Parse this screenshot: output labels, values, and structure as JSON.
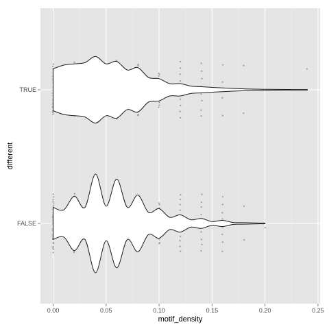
{
  "chart_data": {
    "type": "violin",
    "xlabel": "motif_density",
    "ylabel": "different",
    "xlim": [
      -0.012,
      0.252
    ],
    "x_ticks": [
      0.0,
      0.05,
      0.1,
      0.15,
      0.2,
      0.25
    ],
    "x_tick_labels": [
      "0.00",
      "0.05",
      "0.10",
      "0.15",
      "0.20",
      "0.25"
    ],
    "categories": [
      "FALSE",
      "TRUE"
    ],
    "grid": true,
    "background_color": "#e5e5e5",
    "grid_color": "#ffffff",
    "violins": [
      {
        "category": "TRUE",
        "min": 0.0,
        "max": 0.24,
        "half_width_profile": [
          [
            0.0,
            0.34
          ],
          [
            0.01,
            0.4
          ],
          [
            0.02,
            0.42
          ],
          [
            0.03,
            0.44
          ],
          [
            0.04,
            0.54
          ],
          [
            0.05,
            0.42
          ],
          [
            0.06,
            0.46
          ],
          [
            0.07,
            0.32
          ],
          [
            0.08,
            0.36
          ],
          [
            0.09,
            0.2
          ],
          [
            0.1,
            0.18
          ],
          [
            0.11,
            0.1
          ],
          [
            0.12,
            0.1
          ],
          [
            0.13,
            0.06
          ],
          [
            0.14,
            0.05
          ],
          [
            0.16,
            0.03
          ],
          [
            0.18,
            0.015
          ],
          [
            0.2,
            0.008
          ],
          [
            0.22,
            0.005
          ],
          [
            0.24,
            0.004
          ]
        ],
        "points": [
          {
            "x": 0.0,
            "spread": 0.4,
            "n": 30
          },
          {
            "x": 0.02,
            "spread": 0.44,
            "n": 30
          },
          {
            "x": 0.04,
            "spread": 0.48,
            "n": 34
          },
          {
            "x": 0.06,
            "spread": 0.48,
            "n": 34
          },
          {
            "x": 0.08,
            "spread": 0.42,
            "n": 28
          },
          {
            "x": 0.1,
            "spread": 0.28,
            "n": 16
          },
          {
            "x": 0.12,
            "spread": 0.44,
            "n": 10
          },
          {
            "x": 0.14,
            "spread": 0.44,
            "n": 8
          },
          {
            "x": 0.16,
            "spread": 0.42,
            "n": 4
          },
          {
            "x": 0.18,
            "spread": 0.38,
            "n": 2
          },
          {
            "x": 0.24,
            "spread": 0.38,
            "n": 1
          }
        ]
      },
      {
        "category": "FALSE",
        "min": 0.0,
        "max": 0.2,
        "half_width_profile": [
          [
            0.0,
            0.26
          ],
          [
            0.01,
            0.22
          ],
          [
            0.02,
            0.44
          ],
          [
            0.03,
            0.26
          ],
          [
            0.04,
            0.8
          ],
          [
            0.05,
            0.28
          ],
          [
            0.06,
            0.72
          ],
          [
            0.07,
            0.26
          ],
          [
            0.08,
            0.46
          ],
          [
            0.09,
            0.18
          ],
          [
            0.1,
            0.24
          ],
          [
            0.11,
            0.1
          ],
          [
            0.12,
            0.14
          ],
          [
            0.13,
            0.06
          ],
          [
            0.14,
            0.08
          ],
          [
            0.15,
            0.03
          ],
          [
            0.16,
            0.05
          ],
          [
            0.17,
            0.015
          ],
          [
            0.18,
            0.012
          ],
          [
            0.2,
            0.005
          ]
        ],
        "points": [
          {
            "x": 0.0,
            "spread": 0.46,
            "n": 30
          },
          {
            "x": 0.02,
            "spread": 0.48,
            "n": 32
          },
          {
            "x": 0.04,
            "spread": 0.5,
            "n": 40
          },
          {
            "x": 0.06,
            "spread": 0.48,
            "n": 36
          },
          {
            "x": 0.08,
            "spread": 0.44,
            "n": 28
          },
          {
            "x": 0.1,
            "spread": 0.34,
            "n": 18
          },
          {
            "x": 0.12,
            "spread": 0.46,
            "n": 12
          },
          {
            "x": 0.14,
            "spread": 0.46,
            "n": 10
          },
          {
            "x": 0.16,
            "spread": 0.44,
            "n": 8
          },
          {
            "x": 0.18,
            "spread": 0.28,
            "n": 2
          },
          {
            "x": 0.2,
            "spread": 0.2,
            "n": 1
          }
        ]
      }
    ]
  }
}
